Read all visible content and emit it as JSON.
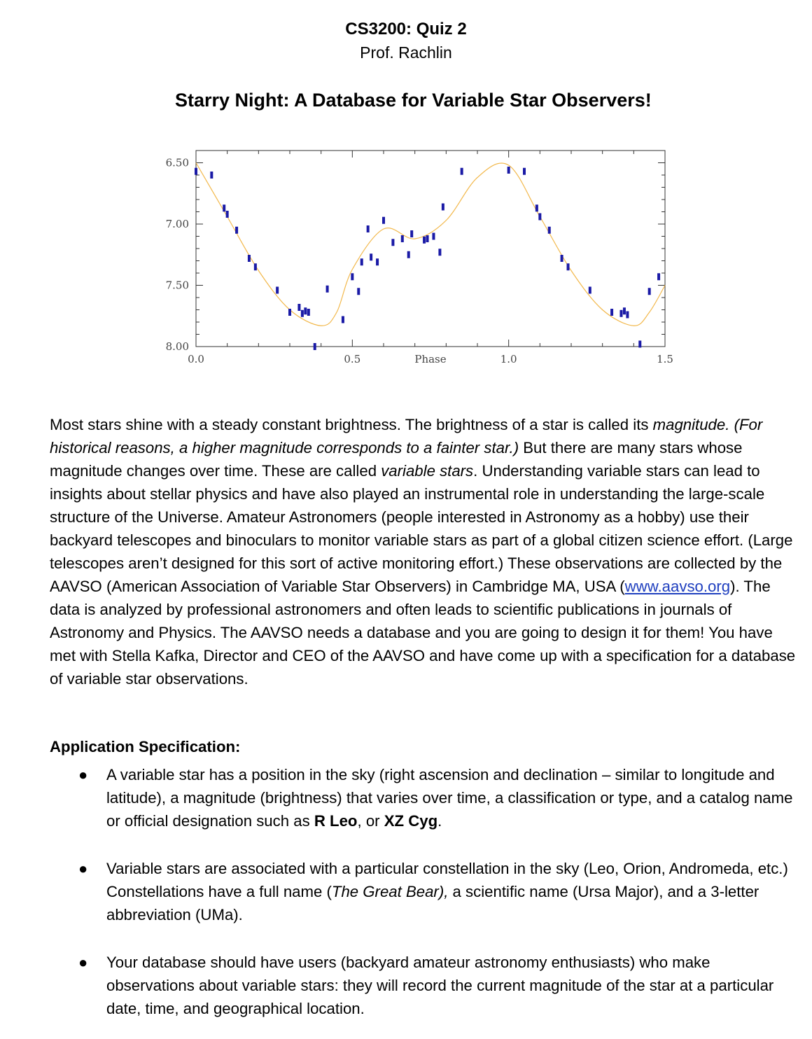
{
  "header": {
    "course": "CS3200: Quiz 2",
    "professor": "Prof. Rachlin",
    "title": "Starry Night: A Database for Variable Star Observers!"
  },
  "chart_data": {
    "type": "scatter",
    "xlabel": "Phase",
    "ylabel": "",
    "xlim": [
      0,
      1.5
    ],
    "ylim": [
      8.0,
      6.4
    ],
    "y_inverted": true,
    "x_ticks": [
      "0.0",
      "0.5",
      "1.0",
      "1.5"
    ],
    "y_ticks": [
      "6.50",
      "7.00",
      "7.50",
      "8.00"
    ],
    "grid": false,
    "colors": {
      "points": "#1a1aa6",
      "fit": "#f2b84b"
    },
    "series": [
      {
        "marker": "square",
        "x": [
          0.0,
          0.05,
          0.09,
          0.1,
          0.13,
          0.17,
          0.19,
          0.26,
          0.3,
          0.33,
          0.34,
          0.35,
          0.36,
          0.38,
          0.42,
          0.47,
          0.5,
          0.52,
          0.53,
          0.55,
          0.56,
          0.58,
          0.6,
          0.63,
          0.66,
          0.68,
          0.69,
          0.73,
          0.74,
          0.76,
          0.78,
          0.79,
          0.85,
          1.0,
          1.05,
          1.09,
          1.1,
          1.13,
          1.17,
          1.19,
          1.26,
          1.33,
          1.36,
          1.37,
          1.38,
          1.42,
          1.45,
          1.48
        ],
        "y": [
          6.57,
          6.6,
          6.87,
          6.92,
          7.05,
          7.28,
          7.35,
          7.54,
          7.72,
          7.68,
          7.73,
          7.71,
          7.72,
          8.0,
          7.53,
          7.78,
          7.43,
          7.55,
          7.31,
          7.04,
          7.27,
          7.31,
          6.97,
          7.15,
          7.12,
          7.25,
          7.08,
          7.13,
          7.12,
          7.1,
          7.23,
          6.86,
          6.57,
          6.56,
          6.57,
          6.87,
          6.94,
          7.05,
          7.28,
          7.35,
          7.54,
          7.72,
          7.73,
          7.71,
          7.74,
          7.98,
          7.55,
          7.43
        ]
      },
      {
        "type": "line",
        "x": [
          0.0,
          0.1,
          0.2,
          0.3,
          0.4,
          0.45,
          0.5,
          0.6,
          0.7,
          0.8,
          0.9,
          1.0,
          1.1,
          1.2,
          1.3,
          1.4,
          1.45,
          1.5
        ],
        "y": [
          6.5,
          6.94,
          7.38,
          7.7,
          7.83,
          7.72,
          7.37,
          7.04,
          7.12,
          6.97,
          6.62,
          6.52,
          6.94,
          7.38,
          7.7,
          7.83,
          7.72,
          7.5
        ]
      }
    ]
  },
  "intro": {
    "s1": "Most stars shine with a steady constant brightness.   The brightness of a star is called its ",
    "s1_em": "magnitude.  (For historical reasons, a higher magnitude corresponds to a fainter star.)",
    "s2": " But there are many stars whose magnitude changes over time.  These are called ",
    "s2_em": "variable stars",
    "s3": ". Understanding variable stars can lead to insights about stellar physics and have also played an instrumental role in understanding the large-scale structure of the Universe. Amateur Astronomers (people interested in Astronomy as a hobby) use their backyard telescopes and binoculars to monitor variable stars as part of a global citizen science effort.  (Large telescopes aren’t designed for this sort of active monitoring effort.) These observations are collected by the AAVSO (American Association of Variable Star Observers) in Cambridge MA, USA (",
    "link": "www.aavso.org",
    "s4": "). The data is analyzed by professional astronomers and often leads to scientific publications in journals of Astronomy and Physics.  The AAVSO needs a database and you are going to design it for them! You have met with Stella Kafka, Director and CEO of the AAVSO and have come up with a specification for a database of variable star observations."
  },
  "spec": {
    "heading": "Application Specification:",
    "bullet": "●",
    "b1": {
      "a": "A variable star has a position in the sky (right ascension and declination – similar to longitude and latitude), a magnitude (brightness) that varies over time, a classification or type, and a catalog name or official designation such as ",
      "bold1": "R Leo",
      "mid": ", or ",
      "bold2": "XZ Cyg",
      "end": "."
    },
    "b2": {
      "a": "Variable stars are associated with a particular constellation in the sky (Leo, Orion, Andromeda, etc.) Constellations have a full name (",
      "em": "The Great Bear),",
      "b": " a scientific name (Ursa Major), and a 3-letter abbreviation (UMa)."
    },
    "b3": {
      "a": "Your database should have users (backyard amateur astronomy enthusiasts) who make observations about variable stars: they will record the current magnitude of the star at a particular date, time, and geographical location."
    }
  }
}
